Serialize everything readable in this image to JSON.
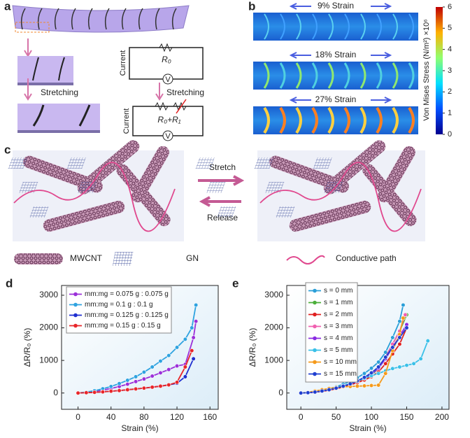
{
  "panel_a": {
    "label": "a",
    "stretch_left": "Stretching",
    "stretch_right": "Stretching",
    "current_1": "Current",
    "current_2": "Current",
    "r0": "R₀",
    "r0_r1": "R₀+R₁",
    "voltmeter_1": "V",
    "voltmeter_2": "V"
  },
  "panel_b": {
    "label": "b",
    "strains": [
      "9% Strain",
      "18% Strain",
      "27% Strain"
    ],
    "colorbar": {
      "label": "Von Mises Stress (N/m²)  ×10⁶",
      "lim": [
        0,
        6
      ],
      "ticks": [
        0,
        1,
        2,
        3,
        4,
        5,
        6
      ]
    }
  },
  "panel_c": {
    "label": "c",
    "stretch": "Stretch",
    "release": "Release",
    "legend": [
      "MWCNT",
      "GN",
      "Conductive path"
    ]
  },
  "chart_data": [
    {
      "type": "line",
      "panel_label": "d",
      "xlabel": "Strain (%)",
      "ylabel": "ΔR/R₀ (%)",
      "xlim": [
        -20,
        170
      ],
      "ylim": [
        -500,
        3300
      ],
      "xticks": [
        0,
        40,
        80,
        120,
        160
      ],
      "yticks": [
        0,
        1000,
        2000,
        3000
      ],
      "series": [
        {
          "name": "mm:mg = 0.075 g : 0.075 g",
          "color": "#9b30d9",
          "x": [
            0,
            10,
            20,
            30,
            40,
            50,
            60,
            70,
            80,
            90,
            100,
            110,
            120,
            130,
            140,
            143
          ],
          "values": [
            0,
            20,
            50,
            90,
            140,
            200,
            270,
            350,
            430,
            520,
            620,
            720,
            830,
            880,
            1700,
            2200
          ]
        },
        {
          "name": "mm:mg = 0.1 g : 0.1 g",
          "color": "#2fa3e0",
          "x": [
            0,
            10,
            20,
            30,
            40,
            50,
            60,
            70,
            80,
            90,
            100,
            110,
            120,
            130,
            138,
            143
          ],
          "values": [
            0,
            30,
            70,
            130,
            200,
            290,
            390,
            500,
            640,
            800,
            980,
            1150,
            1400,
            1650,
            2000,
            2700
          ]
        },
        {
          "name": "mm:mg = 0.125 g : 0.125 g",
          "color": "#1f2fd0",
          "x": [
            0,
            10,
            20,
            30,
            40,
            50,
            60,
            70,
            80,
            90,
            100,
            110,
            120,
            130,
            140
          ],
          "values": [
            0,
            10,
            20,
            35,
            55,
            75,
            100,
            125,
            150,
            180,
            210,
            250,
            300,
            500,
            1050
          ]
        },
        {
          "name": "mm:mg = 0.15 g : 0.15 g",
          "color": "#e8262a",
          "x": [
            0,
            10,
            20,
            30,
            40,
            50,
            60,
            70,
            80,
            90,
            100,
            110,
            120,
            130,
            138
          ],
          "values": [
            0,
            10,
            20,
            35,
            55,
            75,
            100,
            125,
            150,
            180,
            210,
            250,
            330,
            800,
            1300
          ]
        }
      ]
    },
    {
      "type": "line",
      "panel_label": "e",
      "xlabel": "Strain (%)",
      "ylabel": "ΔR/R₀ (%)",
      "xlim": [
        -20,
        210
      ],
      "ylim": [
        -500,
        3300
      ],
      "xticks": [
        0,
        50,
        100,
        150,
        200
      ],
      "yticks": [
        0,
        1000,
        2000,
        3000
      ],
      "series": [
        {
          "name": "s = 0 mm",
          "color": "#2b9fd8",
          "x": [
            0,
            10,
            20,
            30,
            40,
            50,
            60,
            70,
            80,
            90,
            100,
            110,
            120,
            130,
            140,
            145
          ],
          "values": [
            0,
            15,
            40,
            80,
            130,
            190,
            270,
            360,
            470,
            600,
            760,
            950,
            1250,
            1700,
            2200,
            2700
          ]
        },
        {
          "name": "s = 1 mm",
          "color": "#4caf3a",
          "x": [
            0,
            10,
            20,
            30,
            40,
            50,
            60,
            70,
            80,
            90,
            100,
            110,
            120,
            130,
            140,
            150
          ],
          "values": [
            0,
            10,
            30,
            60,
            100,
            150,
            210,
            280,
            360,
            450,
            560,
            750,
            1100,
            1500,
            1900,
            2400
          ]
        },
        {
          "name": "s = 2 mm",
          "color": "#e02020",
          "x": [
            0,
            10,
            20,
            30,
            40,
            50,
            60,
            70,
            80,
            90,
            100,
            110,
            120,
            130,
            140,
            150
          ],
          "values": [
            0,
            10,
            25,
            50,
            85,
            130,
            185,
            250,
            320,
            400,
            500,
            650,
            900,
            1200,
            1500,
            2000
          ]
        },
        {
          "name": "s = 3 mm",
          "color": "#f060b0",
          "x": [
            0,
            10,
            20,
            30,
            40,
            50,
            60,
            70,
            80,
            90,
            100,
            110,
            120,
            130,
            140,
            148
          ],
          "values": [
            0,
            10,
            30,
            60,
            100,
            150,
            210,
            280,
            360,
            460,
            600,
            800,
            1100,
            1500,
            1900,
            2400
          ]
        },
        {
          "name": "s = 4 mm",
          "color": "#8a2be2",
          "x": [
            0,
            10,
            20,
            30,
            40,
            50,
            60,
            70,
            80,
            90,
            100,
            110,
            120,
            130,
            140,
            150
          ],
          "values": [
            0,
            10,
            30,
            60,
            100,
            150,
            210,
            280,
            360,
            460,
            580,
            760,
            1050,
            1400,
            1750,
            2100
          ]
        },
        {
          "name": "s = 5 mm",
          "color": "#3ac0e8",
          "x": [
            0,
            10,
            20,
            30,
            40,
            50,
            60,
            70,
            80,
            90,
            100,
            110,
            120,
            130,
            140,
            150,
            160,
            170,
            180
          ],
          "values": [
            0,
            15,
            40,
            70,
            110,
            160,
            220,
            290,
            370,
            450,
            530,
            600,
            680,
            750,
            800,
            850,
            900,
            1050,
            1600
          ]
        },
        {
          "name": "s = 10 mm",
          "color": "#f59a1b",
          "x": [
            0,
            10,
            20,
            30,
            40,
            50,
            60,
            70,
            80,
            90,
            100,
            110,
            120,
            130,
            140,
            145
          ],
          "values": [
            0,
            20,
            60,
            100,
            140,
            170,
            190,
            200,
            210,
            220,
            230,
            240,
            600,
            1300,
            1800,
            2300
          ]
        },
        {
          "name": "s = 15 mm",
          "color": "#2040d0",
          "x": [
            0,
            10,
            20,
            30,
            40,
            50,
            60,
            70,
            80,
            90,
            100,
            110,
            120,
            130,
            140,
            150
          ],
          "values": [
            0,
            10,
            30,
            60,
            100,
            150,
            210,
            280,
            370,
            480,
            620,
            800,
            1100,
            1400,
            1700,
            2000
          ]
        }
      ]
    }
  ]
}
